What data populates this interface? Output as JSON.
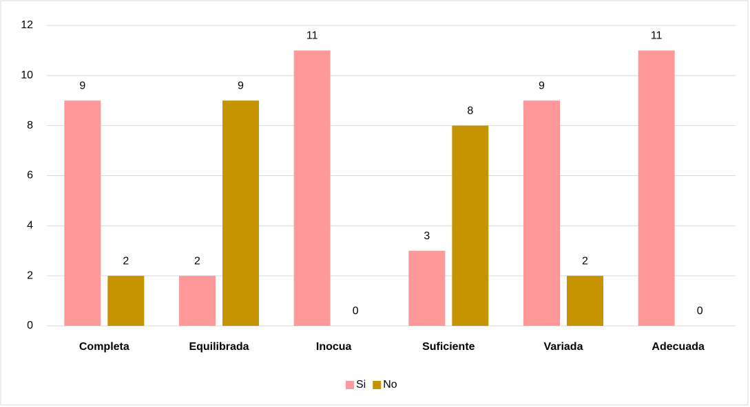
{
  "chart_data": {
    "type": "bar",
    "categories": [
      "Completa",
      "Equilibrada",
      "Inocua",
      "Suficiente",
      "Variada",
      "Adecuada"
    ],
    "series": [
      {
        "name": "Si",
        "color": "#ff9999",
        "values": [
          9,
          2,
          11,
          3,
          9,
          11
        ]
      },
      {
        "name": "No",
        "color": "#c59400",
        "values": [
          2,
          9,
          0,
          8,
          2,
          0
        ]
      }
    ],
    "ylim": [
      0,
      12
    ],
    "yticks": [
      0,
      2,
      4,
      6,
      8,
      10,
      12
    ],
    "grid": true,
    "legend": "bottom"
  }
}
